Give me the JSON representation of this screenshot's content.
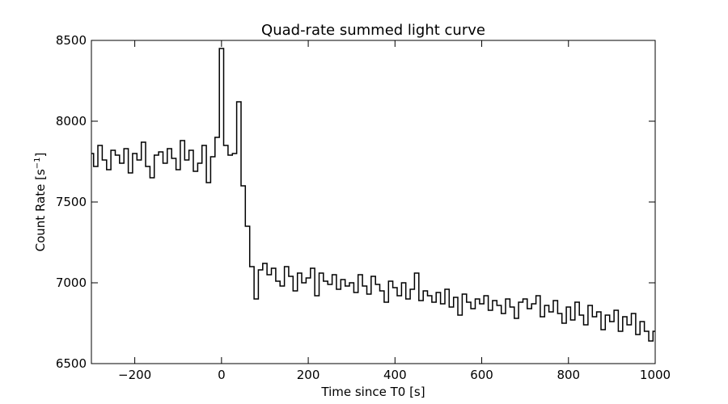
{
  "chart_data": {
    "type": "line",
    "style": "step",
    "title": "Quad-rate summed light curve",
    "xlabel": "Time since T0 [s]",
    "ylabel_main": "Count Rate [s",
    "ylabel_sup": "−1",
    "ylabel_end": "]",
    "xlim": [
      -300,
      1000
    ],
    "ylim": [
      6500,
      8500
    ],
    "xticks": [
      -200,
      0,
      200,
      400,
      600,
      800,
      1000
    ],
    "xtick_labels": [
      "−200",
      "0",
      "200",
      "400",
      "600",
      "800",
      "1000"
    ],
    "yticks": [
      6500,
      7000,
      7500,
      8000,
      8500
    ],
    "ytick_labels": [
      "6500",
      "7000",
      "7500",
      "8000",
      "8500"
    ],
    "grid": false,
    "x_start": -300,
    "x_step": 10,
    "series": [
      {
        "name": "count rate",
        "color": "#000000",
        "values": [
          7800,
          7720,
          7850,
          7760,
          7700,
          7820,
          7790,
          7740,
          7830,
          7680,
          7800,
          7760,
          7870,
          7720,
          7650,
          7790,
          7810,
          7740,
          7830,
          7770,
          7700,
          7880,
          7760,
          7820,
          7690,
          7740,
          7850,
          7620,
          7780,
          7900,
          8450,
          7850,
          7790,
          7800,
          8120,
          7600,
          7350,
          7100,
          6900,
          7080,
          7120,
          7050,
          7090,
          7010,
          6980,
          7100,
          7040,
          6950,
          7060,
          7000,
          7030,
          7090,
          6920,
          7060,
          7010,
          6990,
          7050,
          6960,
          7020,
          6980,
          7000,
          6940,
          7050,
          6980,
          6930,
          7040,
          6990,
          6950,
          6880,
          7010,
          6970,
          6920,
          7000,
          6900,
          6960,
          7060,
          6890,
          6950,
          6920,
          6880,
          6940,
          6870,
          6960,
          6850,
          6910,
          6800,
          6930,
          6880,
          6840,
          6900,
          6870,
          6920,
          6830,
          6890,
          6860,
          6810,
          6900,
          6850,
          6780,
          6880,
          6900,
          6840,
          6870,
          6920,
          6790,
          6860,
          6820,
          6890,
          6810,
          6750,
          6850,
          6770,
          6880,
          6800,
          6740,
          6860,
          6790,
          6820,
          6710,
          6800,
          6760,
          6830,
          6700,
          6790,
          6740,
          6810,
          6680,
          6760,
          6700,
          6640,
          6700
        ]
      }
    ]
  }
}
